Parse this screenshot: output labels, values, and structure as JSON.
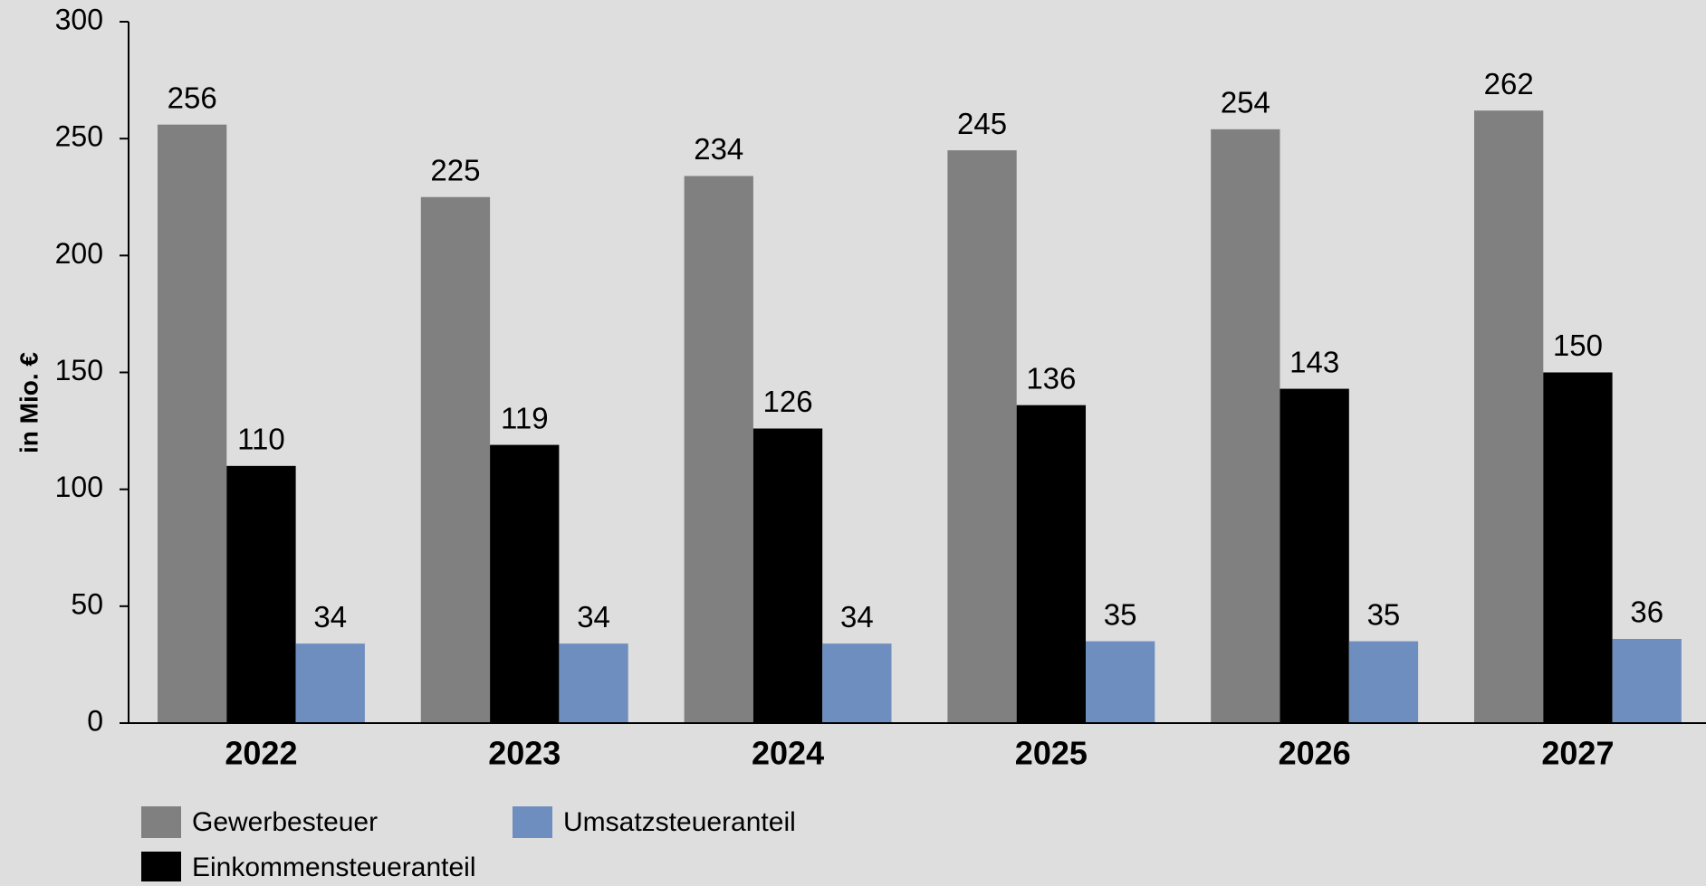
{
  "chart_data": {
    "type": "bar",
    "y_label": "in Mio. €",
    "categories": [
      "2022",
      "2023",
      "2024",
      "2025",
      "2026",
      "2027"
    ],
    "series": [
      {
        "name": "Gewerbesteuer",
        "color": "#808080",
        "values": [
          256,
          225,
          234,
          245,
          254,
          262
        ]
      },
      {
        "name": "Einkommensteueranteil",
        "color": "#000000",
        "values": [
          110,
          119,
          126,
          136,
          143,
          150
        ]
      },
      {
        "name": "Umsatzsteueranteil",
        "color": "#6e8ebf",
        "values": [
          34,
          34,
          34,
          35,
          35,
          36
        ]
      }
    ],
    "ylim": [
      0,
      300
    ],
    "yticks": [
      0,
      50,
      100,
      150,
      200,
      250,
      300
    ],
    "grid": false
  }
}
